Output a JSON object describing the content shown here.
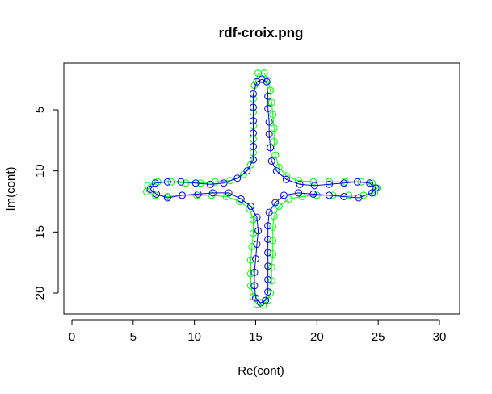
{
  "chart_data": {
    "type": "scatter",
    "title": "rdf-croix.png",
    "xlabel": "Re(cont)",
    "ylabel": "Im(cont)",
    "xlim": [
      0,
      30
    ],
    "ylim": [
      2,
      22
    ],
    "y_axis_reversed": true,
    "x_ticks": [
      "0",
      "5",
      "10",
      "15",
      "20",
      "25",
      "30"
    ],
    "y_ticks": [
      "5",
      "10",
      "15",
      "20"
    ],
    "grid": false,
    "legend": "none",
    "series": [
      {
        "color": "#00ff00",
        "marker": "open-circle",
        "line": true,
        "points": [
          [
            15.2,
            2.0
          ],
          [
            15.7,
            2.0
          ],
          [
            16.0,
            2.6
          ],
          [
            16.2,
            3.4
          ],
          [
            16.3,
            4.4
          ],
          [
            16.4,
            5.4
          ],
          [
            16.5,
            6.5
          ],
          [
            16.5,
            7.6
          ],
          [
            16.6,
            8.7
          ],
          [
            16.9,
            9.7
          ],
          [
            17.5,
            10.4
          ],
          [
            18.5,
            10.8
          ],
          [
            19.7,
            10.9
          ],
          [
            21.0,
            10.9
          ],
          [
            22.3,
            10.9
          ],
          [
            23.6,
            10.9
          ],
          [
            24.5,
            11.0
          ],
          [
            24.9,
            11.4
          ],
          [
            24.7,
            11.8
          ],
          [
            23.8,
            12.0
          ],
          [
            22.6,
            12.0
          ],
          [
            21.3,
            12.0
          ],
          [
            20.0,
            12.0
          ],
          [
            18.8,
            12.1
          ],
          [
            17.7,
            12.3
          ],
          [
            16.9,
            12.9
          ],
          [
            16.5,
            13.7
          ],
          [
            16.4,
            14.6
          ],
          [
            16.4,
            15.7
          ],
          [
            16.4,
            16.8
          ],
          [
            16.3,
            17.9
          ],
          [
            16.3,
            19.0
          ],
          [
            16.2,
            20.0
          ],
          [
            16.0,
            20.6
          ],
          [
            15.6,
            21.0
          ],
          [
            15.1,
            20.9
          ],
          [
            14.8,
            20.3
          ],
          [
            14.6,
            19.4
          ],
          [
            14.6,
            18.4
          ],
          [
            14.6,
            17.3
          ],
          [
            14.7,
            16.2
          ],
          [
            14.8,
            15.1
          ],
          [
            14.8,
            14.0
          ],
          [
            14.5,
            13.1
          ],
          [
            13.7,
            12.5
          ],
          [
            12.6,
            12.1
          ],
          [
            11.4,
            12.0
          ],
          [
            10.2,
            12.0
          ],
          [
            9.0,
            12.0
          ],
          [
            7.8,
            12.1
          ],
          [
            6.8,
            12.0
          ],
          [
            6.1,
            11.7
          ],
          [
            6.2,
            11.2
          ],
          [
            7.0,
            10.9
          ],
          [
            8.1,
            10.9
          ],
          [
            9.3,
            11.0
          ],
          [
            10.5,
            11.0
          ],
          [
            11.7,
            10.9
          ],
          [
            12.9,
            10.8
          ],
          [
            14.0,
            10.3
          ],
          [
            14.6,
            9.5
          ],
          [
            14.8,
            8.5
          ],
          [
            14.8,
            7.4
          ],
          [
            14.8,
            6.3
          ],
          [
            14.8,
            5.2
          ],
          [
            14.8,
            4.1
          ],
          [
            14.9,
            3.0
          ]
        ]
      },
      {
        "color": "#0000ff",
        "marker": "open-circle",
        "line": true,
        "points": [
          [
            15.1,
            2.7
          ],
          [
            15.5,
            2.5
          ],
          [
            15.9,
            2.7
          ],
          [
            16.0,
            3.9
          ],
          [
            16.0,
            4.9
          ],
          [
            16.1,
            6.0
          ],
          [
            16.1,
            7.0
          ],
          [
            16.2,
            8.1
          ],
          [
            16.3,
            9.2
          ],
          [
            16.7,
            10.0
          ],
          [
            17.5,
            10.7
          ],
          [
            18.6,
            11.1
          ],
          [
            19.8,
            11.2
          ],
          [
            21.0,
            11.1
          ],
          [
            22.2,
            11.0
          ],
          [
            23.3,
            10.9
          ],
          [
            24.3,
            11.0
          ],
          [
            24.8,
            11.4
          ],
          [
            24.5,
            11.8
          ],
          [
            23.4,
            12.2
          ],
          [
            22.2,
            12.1
          ],
          [
            21.0,
            12.0
          ],
          [
            19.7,
            11.9
          ],
          [
            18.5,
            11.8
          ],
          [
            17.3,
            12.0
          ],
          [
            16.6,
            12.6
          ],
          [
            16.1,
            13.4
          ],
          [
            16.0,
            14.5
          ],
          [
            16.0,
            15.6
          ],
          [
            16.0,
            16.7
          ],
          [
            16.0,
            17.8
          ],
          [
            16.0,
            18.9
          ],
          [
            16.0,
            19.9
          ],
          [
            15.8,
            20.6
          ],
          [
            15.4,
            20.8
          ],
          [
            15.0,
            20.4
          ],
          [
            14.9,
            19.4
          ],
          [
            14.9,
            18.3
          ],
          [
            15.0,
            17.2
          ],
          [
            15.1,
            16.0
          ],
          [
            15.2,
            14.9
          ],
          [
            15.1,
            13.8
          ],
          [
            14.6,
            12.9
          ],
          [
            13.8,
            12.3
          ],
          [
            12.8,
            11.8
          ],
          [
            11.5,
            11.8
          ],
          [
            10.3,
            11.9
          ],
          [
            9.0,
            12.0
          ],
          [
            7.8,
            12.2
          ],
          [
            6.9,
            11.9
          ],
          [
            6.4,
            11.5
          ],
          [
            6.8,
            11.0
          ],
          [
            7.8,
            10.9
          ],
          [
            8.9,
            10.9
          ],
          [
            10.1,
            11.0
          ],
          [
            11.3,
            11.1
          ],
          [
            12.4,
            11.0
          ],
          [
            13.5,
            10.6
          ],
          [
            14.3,
            10.0
          ],
          [
            14.8,
            9.1
          ],
          [
            14.8,
            8.0
          ],
          [
            14.8,
            6.9
          ],
          [
            14.8,
            5.9
          ],
          [
            14.8,
            4.8
          ],
          [
            14.8,
            3.7
          ]
        ]
      }
    ]
  }
}
